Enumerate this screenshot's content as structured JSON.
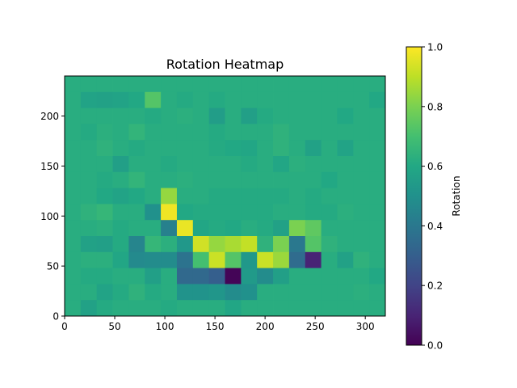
{
  "chart_data": {
    "type": "heatmap",
    "title": "Rotation Heatmap",
    "xlabel": "",
    "ylabel": "",
    "colorbar_label": "Rotation",
    "colormap": "viridis",
    "xlim": [
      0,
      320
    ],
    "ylim": [
      0,
      240
    ],
    "cell_size": 16,
    "x_ticks": [
      0,
      50,
      100,
      150,
      200,
      250,
      300
    ],
    "y_ticks": [
      0,
      50,
      100,
      150,
      200
    ],
    "colorbar_ticks": [
      "0.0",
      "0.2",
      "0.4",
      "0.6",
      "0.8",
      "1.0"
    ],
    "value_range": [
      0,
      1
    ],
    "grid": false,
    "rows_from_top": [
      [
        0.62,
        0.62,
        0.62,
        0.62,
        0.62,
        0.62,
        0.62,
        0.62,
        0.62,
        0.62,
        0.62,
        0.62,
        0.62,
        0.62,
        0.62,
        0.62,
        0.62,
        0.62,
        0.62,
        0.62
      ],
      [
        0.62,
        0.58,
        0.57,
        0.58,
        0.6,
        0.73,
        0.62,
        0.61,
        0.62,
        0.61,
        0.62,
        0.62,
        0.62,
        0.62,
        0.62,
        0.62,
        0.62,
        0.62,
        0.62,
        0.6
      ],
      [
        0.62,
        0.62,
        0.62,
        0.62,
        0.62,
        0.61,
        0.62,
        0.63,
        0.62,
        0.55,
        0.62,
        0.56,
        0.61,
        0.62,
        0.62,
        0.62,
        0.62,
        0.6,
        0.62,
        0.62
      ],
      [
        0.62,
        0.61,
        0.63,
        0.62,
        0.65,
        0.62,
        0.62,
        0.62,
        0.62,
        0.61,
        0.62,
        0.62,
        0.62,
        0.64,
        0.62,
        0.62,
        0.62,
        0.62,
        0.62,
        0.62
      ],
      [
        0.62,
        0.62,
        0.64,
        0.62,
        0.61,
        0.62,
        0.62,
        0.62,
        0.62,
        0.61,
        0.6,
        0.59,
        0.62,
        0.64,
        0.62,
        0.57,
        0.62,
        0.58,
        0.62,
        0.62
      ],
      [
        0.62,
        0.62,
        0.62,
        0.56,
        0.62,
        0.62,
        0.61,
        0.62,
        0.62,
        0.62,
        0.62,
        0.61,
        0.62,
        0.59,
        0.63,
        0.62,
        0.62,
        0.62,
        0.62,
        0.62
      ],
      [
        0.62,
        0.62,
        0.61,
        0.62,
        0.65,
        0.62,
        0.62,
        0.63,
        0.62,
        0.62,
        0.62,
        0.62,
        0.62,
        0.62,
        0.62,
        0.62,
        0.6,
        0.62,
        0.62,
        0.62
      ],
      [
        0.62,
        0.62,
        0.6,
        0.58,
        0.6,
        0.62,
        0.84,
        0.62,
        0.62,
        0.61,
        0.61,
        0.61,
        0.61,
        0.61,
        0.62,
        0.61,
        0.62,
        0.62,
        0.62,
        0.62
      ],
      [
        0.62,
        0.64,
        0.66,
        0.62,
        0.62,
        0.5,
        0.98,
        0.6,
        0.61,
        0.61,
        0.61,
        0.61,
        0.61,
        0.62,
        0.62,
        0.61,
        0.61,
        0.63,
        0.62,
        0.62
      ],
      [
        0.62,
        0.62,
        0.63,
        0.61,
        0.62,
        0.62,
        0.43,
        0.97,
        0.59,
        0.61,
        0.6,
        0.62,
        0.61,
        0.57,
        0.8,
        0.75,
        0.62,
        0.62,
        0.62,
        0.62
      ],
      [
        0.62,
        0.57,
        0.56,
        0.61,
        0.45,
        0.66,
        0.63,
        0.53,
        0.93,
        0.84,
        0.87,
        0.91,
        0.64,
        0.8,
        0.4,
        0.73,
        0.64,
        0.62,
        0.62,
        0.62
      ],
      [
        0.62,
        0.63,
        0.63,
        0.59,
        0.47,
        0.48,
        0.48,
        0.38,
        0.7,
        0.92,
        0.73,
        0.53,
        0.92,
        0.85,
        0.35,
        0.1,
        0.62,
        0.57,
        0.64,
        0.62
      ],
      [
        0.62,
        0.61,
        0.61,
        0.62,
        0.62,
        0.56,
        0.62,
        0.34,
        0.34,
        0.3,
        0.01,
        0.54,
        0.48,
        0.56,
        0.62,
        0.62,
        0.62,
        0.62,
        0.62,
        0.6
      ],
      [
        0.62,
        0.62,
        0.58,
        0.61,
        0.64,
        0.61,
        0.62,
        0.51,
        0.51,
        0.52,
        0.48,
        0.5,
        0.62,
        0.62,
        0.62,
        0.62,
        0.62,
        0.62,
        0.63,
        0.62
      ],
      [
        0.62,
        0.57,
        0.61,
        0.62,
        0.62,
        0.62,
        0.61,
        0.62,
        0.62,
        0.62,
        0.59,
        0.62,
        0.62,
        0.62,
        0.62,
        0.62,
        0.62,
        0.62,
        0.62,
        0.62
      ]
    ]
  }
}
